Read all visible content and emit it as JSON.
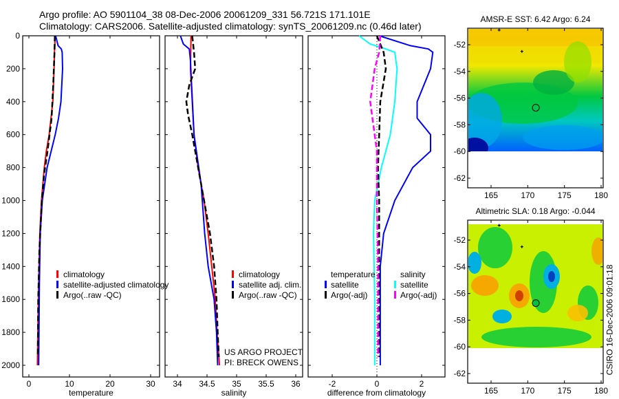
{
  "header": {
    "line1": "Argo profile: AO 5901104_38 08-Dec-2006 20061209_331 56.721S 171.101E",
    "line2": "Climatology: CARS2006. Satellite-adjusted climatology: synTS_20061209.nc (0.46d later)"
  },
  "stamp": "CSIRO 16-Dec-2006 09:01:18",
  "credits": {
    "line1": "US ARGO PROJECT",
    "line2": "PI: BRECK OWENS"
  },
  "colors": {
    "red": "#ff0000",
    "blue": "#0000ff",
    "black": "#000000",
    "cyan": "#00ffff",
    "magenta": "#ff00ff"
  },
  "chart_data": [
    {
      "type": "line",
      "id": "temperature",
      "xlabel": "temperature",
      "ylabel": "",
      "xlim": [
        -2,
        32
      ],
      "ylim": [
        2050,
        0
      ],
      "xticks": [
        0,
        10,
        20,
        30
      ],
      "xtick_labels": [
        "0",
        "10",
        "20",
        "30"
      ],
      "yticks": [
        0,
        200,
        400,
        600,
        800,
        1000,
        1200,
        1400,
        1600,
        1800,
        2000
      ],
      "ytick_labels": [
        "0",
        "200",
        "400",
        "600",
        "800",
        "1000",
        "1200",
        "1400",
        "1600",
        "1800",
        "2000"
      ],
      "legend": [
        {
          "label": "climatology",
          "color": "#ff0000"
        },
        {
          "label": "satellite-adjusted climatology",
          "color": "#0000ff"
        },
        {
          "label": "Argo(..raw -QC)",
          "color": "#000000"
        }
      ],
      "series": [
        {
          "name": "climatology",
          "color": "#ff0000",
          "dash": false,
          "depth": [
            0,
            100,
            200,
            400,
            600,
            700,
            800,
            1000,
            1200,
            1500,
            1800,
            2000
          ],
          "values": [
            6.5,
            6.3,
            6.2,
            5.9,
            5.0,
            4.3,
            3.8,
            3.1,
            2.7,
            2.4,
            2.2,
            2.1
          ]
        },
        {
          "name": "satellite-adjusted climatology",
          "color": "#0000ff",
          "dash": false,
          "depth": [
            0,
            60,
            80,
            100,
            200,
            400,
            500,
            600,
            800,
            1000,
            1200,
            1500,
            2000
          ],
          "values": [
            6.6,
            7.2,
            8.0,
            8.2,
            8.3,
            7.9,
            7.3,
            6.5,
            4.5,
            3.3,
            2.8,
            2.6,
            2.4
          ]
        },
        {
          "name": "Argo(..raw -QC)",
          "color": "#000000",
          "dash": true,
          "depth": [
            0,
            100,
            300,
            500,
            700,
            850,
            1000,
            1100,
            1300,
            1600,
            1950
          ],
          "values": [
            6.4,
            6.3,
            6.0,
            5.6,
            4.6,
            3.7,
            3.2,
            3.0,
            2.6,
            2.3,
            2.2
          ]
        }
      ]
    },
    {
      "type": "line",
      "id": "salinity",
      "xlabel": "salinity",
      "ylabel": "",
      "xlim": [
        33.9,
        36.05
      ],
      "ylim": [
        2050,
        0
      ],
      "xticks": [
        34,
        34.5,
        35,
        35.5,
        36
      ],
      "xtick_labels": [
        "34",
        "34.5",
        "35",
        "35.5",
        "36"
      ],
      "legend": [
        {
          "label": "climatology",
          "color": "#ff0000"
        },
        {
          "label": "satellite adj. clim.",
          "color": "#0000ff"
        },
        {
          "label": "Argo(..raw -QC)",
          "color": "#000000"
        }
      ],
      "series": [
        {
          "name": "climatology",
          "color": "#ff0000",
          "dash": false,
          "depth": [
            0,
            200,
            400,
            600,
            800,
            900,
            1000,
            1200,
            1400,
            1600,
            1800,
            2000
          ],
          "values": [
            34.23,
            34.22,
            34.25,
            34.28,
            34.35,
            34.4,
            34.45,
            34.52,
            34.58,
            34.64,
            34.67,
            34.71
          ]
        },
        {
          "name": "satellite adj. clim.",
          "color": "#0000ff",
          "dash": false,
          "depth": [
            0,
            50,
            80,
            150,
            300,
            600,
            900,
            1200,
            1400,
            1600,
            1800,
            2000
          ],
          "values": [
            34.05,
            34.1,
            34.2,
            34.22,
            34.24,
            34.28,
            34.4,
            34.46,
            34.52,
            34.62,
            34.66,
            34.68
          ]
        },
        {
          "name": "Argo(..raw -QC)",
          "color": "#000000",
          "dash": true,
          "depth": [
            0,
            100,
            200,
            300,
            400,
            480,
            600,
            800,
            1000,
            1200,
            1400,
            1600,
            1800,
            1950
          ],
          "values": [
            34.25,
            34.28,
            34.3,
            34.2,
            34.15,
            34.18,
            34.25,
            34.35,
            34.45,
            34.55,
            34.62,
            34.66,
            34.68,
            34.7
          ]
        }
      ]
    },
    {
      "type": "line",
      "id": "difference",
      "xlabel": "difference from climatology",
      "ylabel": "",
      "xlim": [
        -3.1,
        3.05
      ],
      "ylim": [
        2050,
        0
      ],
      "xticks": [
        -2,
        0,
        2
      ],
      "xtick_labels": [
        "-2",
        "0",
        "2"
      ],
      "legend_headers": [
        "temperature",
        "salinity"
      ],
      "legend": [
        {
          "label": "satellite",
          "color": "#0000ff",
          "group": "temperature"
        },
        {
          "label": "Argo(-adj)",
          "color": "#000000",
          "group": "temperature"
        },
        {
          "label": "satellite",
          "color": "#00ffff",
          "group": "salinity"
        },
        {
          "label": "Argo(-adj)",
          "color": "#ff00ff",
          "group": "salinity"
        }
      ],
      "series": [
        {
          "name": "temperature satellite",
          "color": "#0000ff",
          "dash": false,
          "depth": [
            0,
            60,
            80,
            100,
            200,
            400,
            500,
            600,
            700,
            800,
            1000,
            1200,
            1400,
            2000
          ],
          "values": [
            0.1,
            1.5,
            2.3,
            2.5,
            2.4,
            1.8,
            1.8,
            2.4,
            2.4,
            1.6,
            0.8,
            0.3,
            0.15,
            0.15
          ]
        },
        {
          "name": "salinity satellite",
          "color": "#00ffff",
          "dash": false,
          "depth": [
            0,
            50,
            80,
            100,
            200,
            400,
            600,
            800,
            1000,
            1200,
            1600,
            2000
          ],
          "values": [
            -0.8,
            -0.3,
            0.4,
            0.8,
            0.9,
            0.8,
            0.6,
            0.2,
            -0.1,
            -0.15,
            -0.1,
            -0.1
          ]
        },
        {
          "name": "temperature Argo(-adj)",
          "color": "#000000",
          "dash": true,
          "depth": [
            0,
            100,
            200,
            400,
            600,
            800,
            1000,
            1400,
            1950
          ],
          "values": [
            0.0,
            0.3,
            0.4,
            0.15,
            0.1,
            0.05,
            0.1,
            0.1,
            0.1
          ]
        },
        {
          "name": "salinity Argo(-adj)",
          "color": "#ff00ff",
          "dash": true,
          "depth": [
            0,
            100,
            200,
            400,
            500,
            700,
            1000,
            1400,
            1950
          ],
          "values": [
            0.15,
            0.1,
            -0.1,
            -0.3,
            -0.2,
            0.0,
            0.0,
            0.05,
            0.05
          ]
        }
      ]
    },
    {
      "type": "heatmap",
      "id": "sst-map",
      "title": "AMSR-E SST: 6.42 Argo: 6.24",
      "xlim": [
        161.8,
        180.4
      ],
      "ylim": [
        -50.76,
        -62.7
      ],
      "xticks": [
        165,
        170,
        175,
        180
      ],
      "xtick_labels": [
        "165",
        "170",
        "175",
        "180"
      ],
      "yticks": [
        -52,
        -54,
        -56,
        -58,
        -60,
        -62
      ],
      "ytick_labels": [
        "-52",
        "-54",
        "-56",
        "-58",
        "-60",
        "-62"
      ],
      "profile_location": [
        171.101,
        -56.721
      ],
      "other_profiles": [
        [
          169.2,
          -52.5
        ],
        [
          166.1,
          -50.9
        ]
      ]
    },
    {
      "type": "heatmap",
      "id": "sla-map",
      "title": "Altimetric SLA: 0.18 Argo: -0.044",
      "xlim": [
        161.8,
        180.4
      ],
      "ylim": [
        -50.5,
        -62.7
      ],
      "xticks": [
        165,
        170,
        175,
        180
      ],
      "xtick_labels": [
        "165",
        "170",
        "175",
        "180"
      ],
      "yticks": [
        -52,
        -54,
        -56,
        -58,
        -60,
        -62
      ],
      "ytick_labels": [
        "-52",
        "-54",
        "-56",
        "-58",
        "-60",
        "-62"
      ],
      "profile_location": [
        171.101,
        -56.721
      ],
      "other_profiles": [
        [
          169.2,
          -52.5
        ],
        [
          166.1,
          -50.9
        ]
      ]
    }
  ]
}
